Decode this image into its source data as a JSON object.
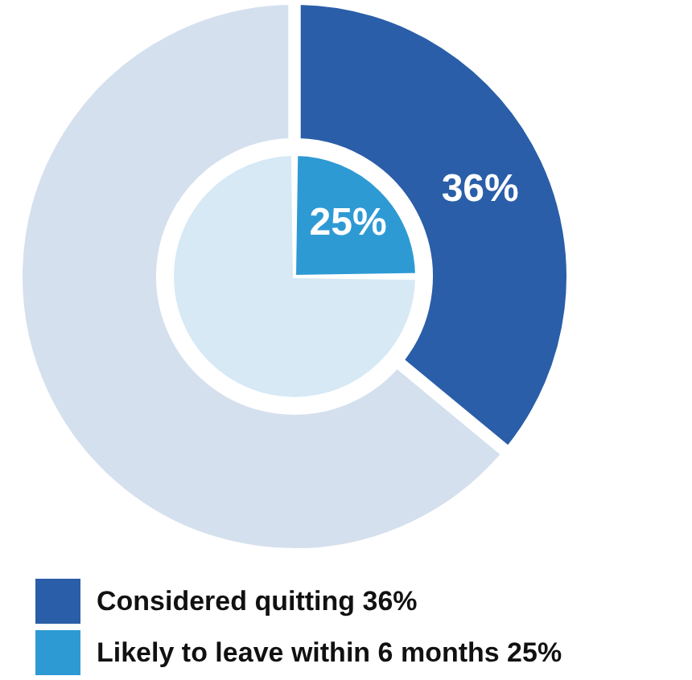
{
  "chart_data": [
    {
      "type": "donut",
      "categories": [
        "Considered quitting 36%",
        null
      ],
      "values": [
        36,
        64
      ],
      "colors": [
        "#2a5ea8",
        "#d5e0ee"
      ],
      "value_labels": [
        "36%",
        null
      ],
      "legend": "bottom left"
    },
    {
      "type": "pie",
      "categories": [
        "Likely to leave within 6 months 25%",
        null
      ],
      "values": [
        25,
        75
      ],
      "colors": [
        "#2e9ad4",
        "#d6e9f5"
      ],
      "value_labels": [
        "25%",
        null
      ],
      "legend": "bottom left"
    }
  ]
}
